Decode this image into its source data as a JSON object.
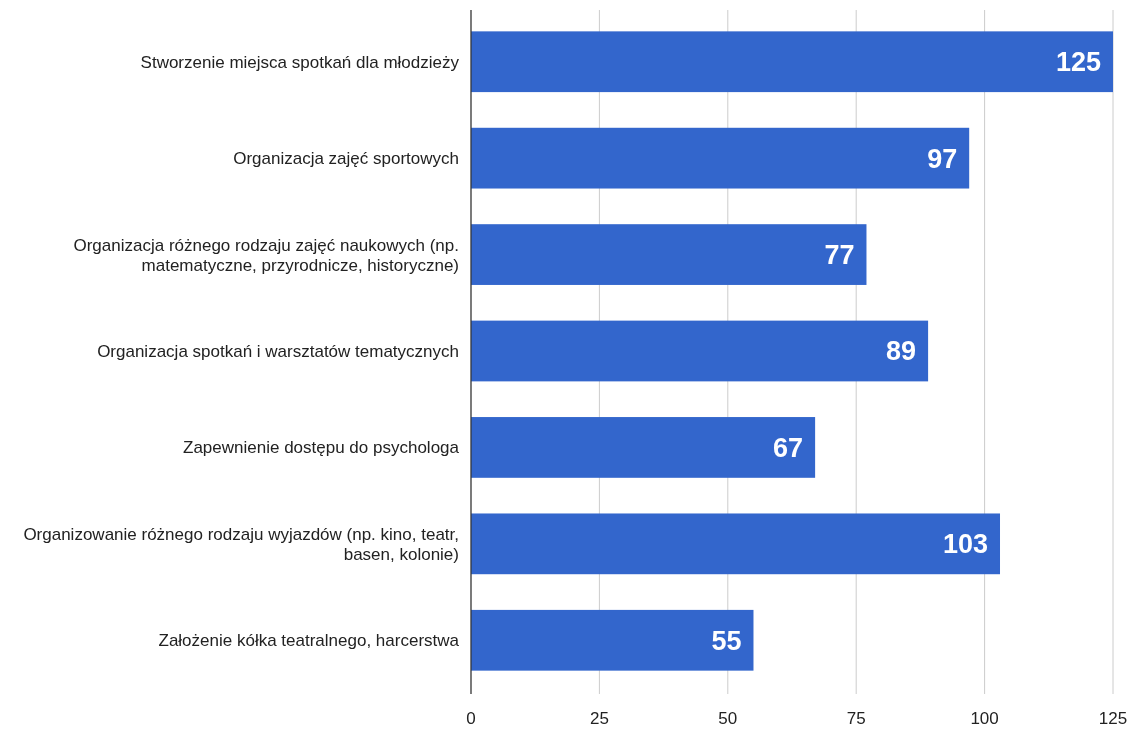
{
  "chart_data": {
    "type": "bar",
    "orientation": "horizontal",
    "categories": [
      "Stworzenie miejsca spotkań dla młodzieży",
      "Organizacja zajęć sportowych",
      "Organizacja różnego rodzaju zajęć naukowych (np. matematyczne, przyrodnicze, historyczne)",
      "Organizacja spotkań i warsztatów tematycznych",
      "Zapewnienie dostępu do psychologa",
      "Organizowanie różnego rodzaju wyjazdów (np. kino, teatr, basen, kolonie)",
      "Założenie kółka teatralnego, harcerstwa"
    ],
    "values": [
      125,
      97,
      77,
      89,
      67,
      103,
      55
    ],
    "color": "#3366cc",
    "xlim": [
      0,
      125
    ],
    "xticks": [
      0,
      25,
      50,
      75,
      100,
      125
    ],
    "grid": "x",
    "data_labels": true
  }
}
